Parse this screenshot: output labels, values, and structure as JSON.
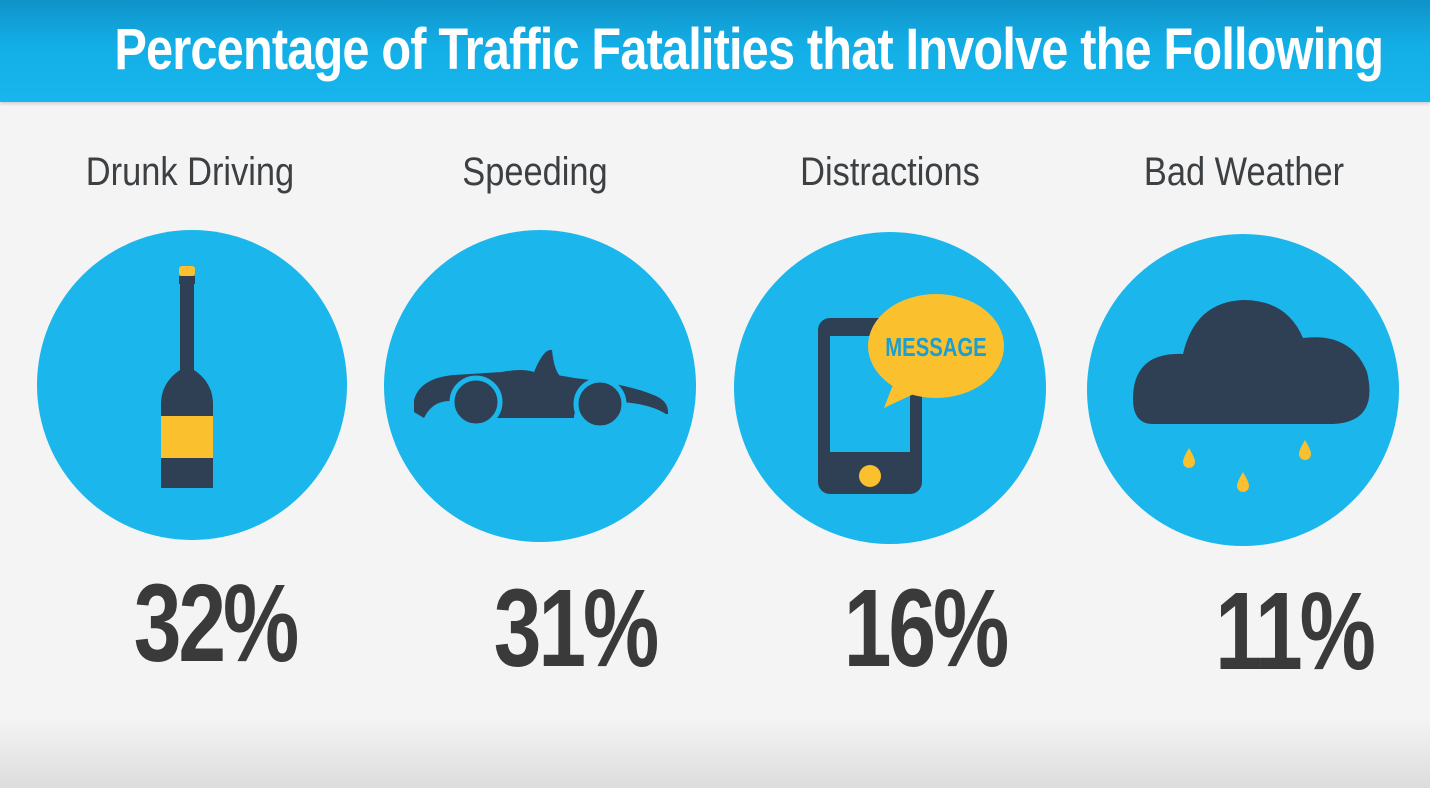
{
  "header": {
    "title": "Percentage of Traffic Fatalities that Involve the Following"
  },
  "colors": {
    "header_blue": "#14aee6",
    "circle_blue": "#1ab6ec",
    "icon_dark": "#2f3f54",
    "accent_yellow": "#fbc02d",
    "text_dark": "#3a3a3a"
  },
  "categories": [
    {
      "label": "Drunk Driving",
      "value": "32%",
      "icon": "bottle-icon"
    },
    {
      "label": "Speeding",
      "value": "31%",
      "icon": "car-icon"
    },
    {
      "label": "Distractions",
      "value": "16%",
      "icon": "phone-message-icon",
      "bubble_text": "MESSAGE"
    },
    {
      "label": "Bad Weather",
      "value": "11%",
      "icon": "rain-cloud-icon"
    }
  ]
}
